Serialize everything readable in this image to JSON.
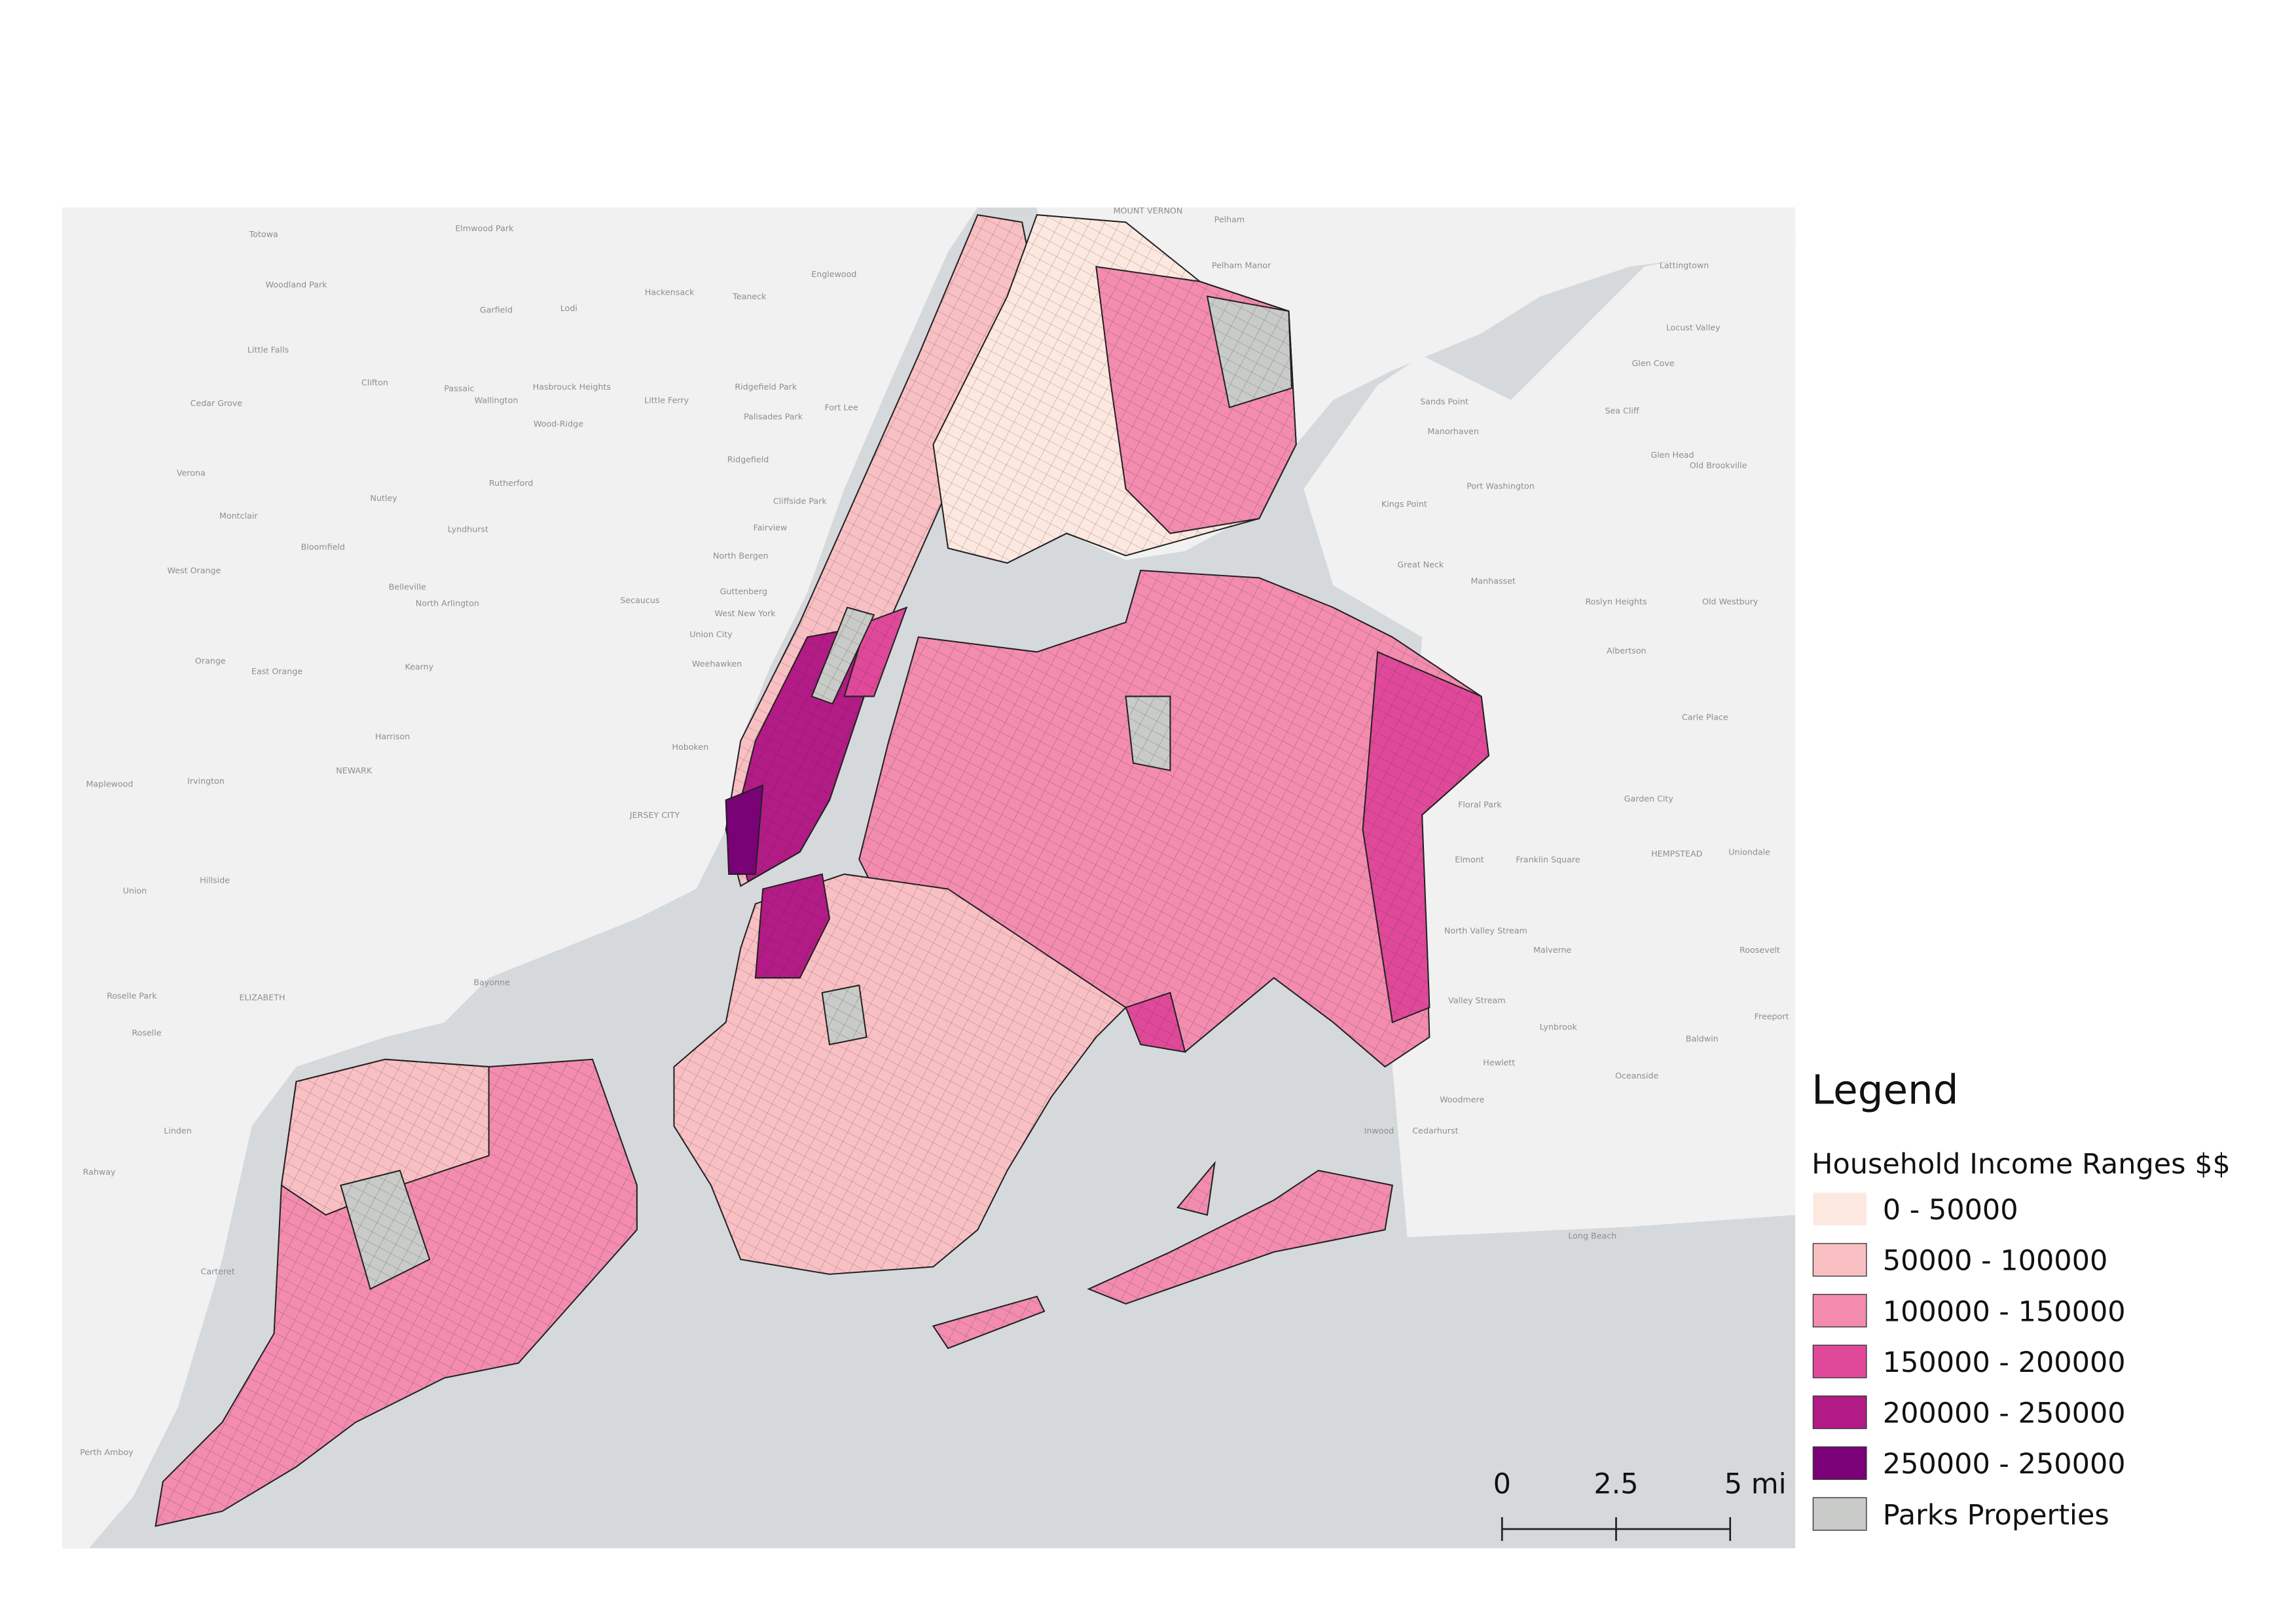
{
  "map": {
    "places": [
      "Totowa",
      "Elmwood Park",
      "MOUNT VERNON",
      "Pelham",
      "Pelham Manor",
      "Woodland Park",
      "Garfield",
      "Lodi",
      "Hackensack",
      "Teaneck",
      "Englewood",
      "Little Falls",
      "Clifton",
      "Passaic",
      "Wallington",
      "Hasbrouck Heights",
      "Little Ferry",
      "Ridgefield Park",
      "Fort Lee",
      "Palisades Park",
      "Cedar Grove",
      "Wood-Ridge",
      "Ridgefield",
      "Rutherford",
      "Verona",
      "Nutley",
      "Cliffside Park",
      "Montclair",
      "Lyndhurst",
      "Fairview",
      "Bloomfield",
      "North Bergen",
      "West Orange",
      "Belleville",
      "North Arlington",
      "Secaucus",
      "Guttenberg",
      "West New York",
      "Union City",
      "Orange",
      "East Orange",
      "Kearny",
      "Weehawken",
      "Harrison",
      "Hoboken",
      "NEWARK",
      "Maplewood",
      "Irvington",
      "JERSEY CITY",
      "Hillside",
      "Union",
      "Bayonne",
      "Roselle Park",
      "ELIZABETH",
      "Roselle",
      "Linden",
      "Rahway",
      "Carteret",
      "Perth Amboy",
      "Lattingtown",
      "Locust Valley",
      "Glen Cove",
      "Sands Point",
      "Sea Cliff",
      "Manorhaven",
      "Glen Head",
      "Old Brookville",
      "Port Washington",
      "Kings Point",
      "Great Neck",
      "Manhasset",
      "Roslyn Heights",
      "Old Westbury",
      "Albertson",
      "Carle Place",
      "Garden City",
      "Floral Park",
      "Elmont",
      "Franklin Square",
      "HEMPSTEAD",
      "Uniondale",
      "North Valley Stream",
      "Malverne",
      "Roosevelt",
      "Valley Stream",
      "Lynbrook",
      "Freeport",
      "Baldwin",
      "Hewlett",
      "Oceanside",
      "Woodmere",
      "Inwood",
      "Cedarhurst",
      "Long Beach"
    ],
    "legend": {
      "title": "Legend",
      "subtitle": "Household Income Ranges $$",
      "items": [
        {
          "label": "0 - 50000",
          "color": "#fde8e0"
        },
        {
          "label": "50000 - 100000",
          "color": "#f9c0c4"
        },
        {
          "label": "100000 - 150000",
          "color": "#f38caf"
        },
        {
          "label": "150000 - 200000",
          "color": "#e0499a"
        },
        {
          "label": "200000 - 250000",
          "color": "#b31b86"
        },
        {
          "label": "250000 - 250000",
          "color": "#7a0177"
        },
        {
          "label": "Parks Properties",
          "color": "#c8cbc8"
        }
      ]
    },
    "scale_bar": {
      "ticks": [
        {
          "value": 0,
          "label": "0"
        },
        {
          "value": 2.5,
          "label": "2.5"
        },
        {
          "value": 5,
          "label": "5 mi"
        }
      ]
    }
  }
}
